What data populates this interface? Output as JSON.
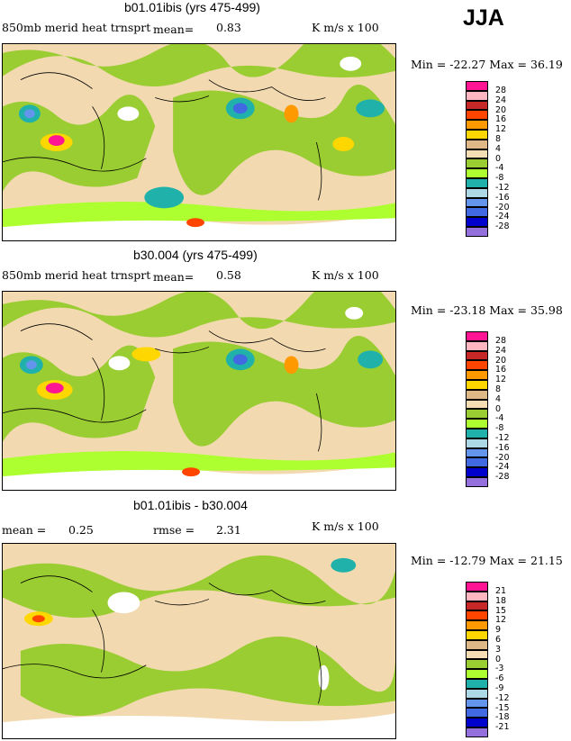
{
  "season": "JJA",
  "panels": [
    {
      "title": "b01.01ibis (yrs 475-499)",
      "variable": "850mb merid heat trnsprt",
      "stat_label": "mean=",
      "stat_value": "0.83",
      "units": "K m/s x 100",
      "min_text": "Min = -22.27",
      "max_text": "Max =  36.19",
      "legend": [
        "28",
        "24",
        "20",
        "16",
        "12",
        "8",
        "4",
        "0",
        "-4",
        "-8",
        "-12",
        "-16",
        "-20",
        "-24",
        "-28"
      ]
    },
    {
      "title": "b30.004 (yrs 475-499)",
      "variable": "850mb merid heat trnsprt",
      "stat_label": "mean=",
      "stat_value": "0.58",
      "units": "K m/s x 100",
      "min_text": "Min = -23.18",
      "max_text": "Max =  35.98",
      "legend": [
        "28",
        "24",
        "20",
        "16",
        "12",
        "8",
        "4",
        "0",
        "-4",
        "-8",
        "-12",
        "-16",
        "-20",
        "-24",
        "-28"
      ]
    },
    {
      "title": "b01.01ibis - b30.004",
      "variable": "mean =",
      "stat_label": "",
      "stat_value": "0.25",
      "rmse_label": "rmse =",
      "rmse_value": "2.31",
      "units": "K m/s x 100",
      "min_text": "Min = -12.79",
      "max_text": "Max =  21.15",
      "legend": [
        "21",
        "18",
        "15",
        "12",
        "9",
        "6",
        "3",
        "0",
        "-3",
        "-6",
        "-9",
        "-12",
        "-15",
        "-18",
        "-21"
      ]
    }
  ],
  "legend_colors": [
    "#ff1493",
    "#ffb6c1",
    "#c62828",
    "#ff4500",
    "#ff9900",
    "#ffd700",
    "#deb887",
    "#f5deb3",
    "#9acd32",
    "#adff2f",
    "#20b2aa",
    "#add8e6",
    "#6495ed",
    "#4169e1",
    "#0000cd",
    "#9370db"
  ]
}
